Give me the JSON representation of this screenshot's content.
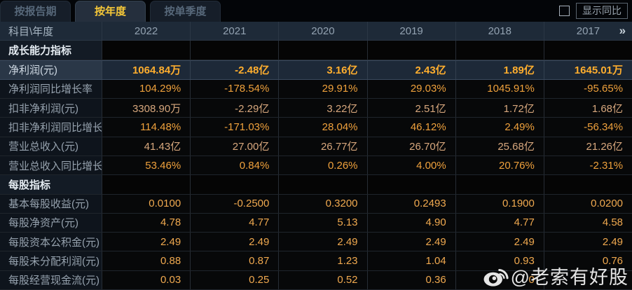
{
  "tabs": [
    {
      "label": "按报告期",
      "active": false
    },
    {
      "label": "按年度",
      "active": true
    },
    {
      "label": "按单季度",
      "active": false
    }
  ],
  "controls": {
    "show_yoy_label": "显示同比",
    "checkbox_checked": false
  },
  "table": {
    "corner_label": "科目\\年度",
    "years": [
      "2022",
      "2021",
      "2020",
      "2019",
      "2018",
      "2017"
    ],
    "more_icon": "»",
    "rows": [
      {
        "type": "section",
        "label": "成长能力指标",
        "values": [
          "",
          "",
          "",
          "",
          "",
          ""
        ]
      },
      {
        "type": "data",
        "style": "highlight",
        "label": "净利润(元)",
        "values": [
          "1064.84万",
          "-2.48亿",
          "3.16亿",
          "2.43亿",
          "1.89亿",
          "1645.01万"
        ]
      },
      {
        "type": "data",
        "style": "percent",
        "label": "净利润同比增长率",
        "values": [
          "104.29%",
          "-178.54%",
          "29.91%",
          "29.03%",
          "1045.91%",
          "-95.65%"
        ]
      },
      {
        "type": "data",
        "style": "money",
        "label": "扣非净利润(元)",
        "values": [
          "3308.90万",
          "-2.29亿",
          "3.22亿",
          "2.51亿",
          "1.72亿",
          "1.68亿"
        ]
      },
      {
        "type": "data",
        "style": "percent",
        "label": "扣非净利润同比增长率",
        "values": [
          "114.48%",
          "-171.03%",
          "28.04%",
          "46.12%",
          "2.49%",
          "-56.34%"
        ]
      },
      {
        "type": "data",
        "style": "money",
        "label": "营业总收入(元)",
        "values": [
          "41.43亿",
          "27.00亿",
          "26.77亿",
          "26.70亿",
          "25.68亿",
          "21.26亿"
        ]
      },
      {
        "type": "data",
        "style": "percent",
        "label": "营业总收入同比增长率",
        "values": [
          "53.46%",
          "0.84%",
          "0.26%",
          "4.00%",
          "20.76%",
          "-2.31%"
        ]
      },
      {
        "type": "section",
        "label": "每股指标",
        "values": [
          "",
          "",
          "",
          "",
          "",
          ""
        ]
      },
      {
        "type": "data",
        "style": "pershare",
        "label": "基本每股收益(元)",
        "values": [
          "0.0100",
          "-0.2500",
          "0.3200",
          "0.2493",
          "0.1900",
          "0.0200"
        ]
      },
      {
        "type": "data",
        "style": "pershare",
        "label": "每股净资产(元)",
        "values": [
          "4.78",
          "4.77",
          "5.13",
          "4.90",
          "4.77",
          "4.58"
        ]
      },
      {
        "type": "data",
        "style": "pershare",
        "label": "每股资本公积金(元)",
        "values": [
          "2.49",
          "2.49",
          "2.49",
          "2.49",
          "2.49",
          "2.49"
        ]
      },
      {
        "type": "data",
        "style": "pershare",
        "label": "每股未分配利润(元)",
        "values": [
          "0.88",
          "0.87",
          "1.23",
          "1.04",
          "0.93",
          "0.76"
        ]
      },
      {
        "type": "data",
        "style": "pershare",
        "label": "每股经营现金流(元)",
        "values": [
          "0.03",
          "0.25",
          "0.52",
          "0.36",
          "0",
          ""
        ]
      }
    ]
  },
  "watermark": {
    "text": "@老索有好股",
    "icon": "weibo-icon"
  }
}
